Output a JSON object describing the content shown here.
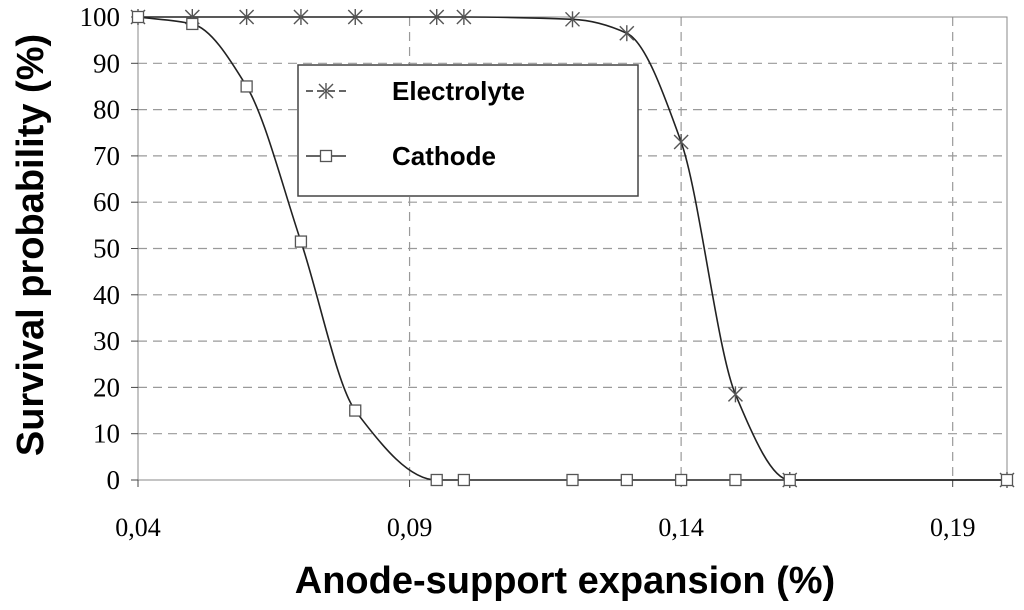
{
  "chart_data": {
    "type": "line",
    "xlabel": "Anode-support expansion (%)",
    "ylabel": "Survival probability (%)",
    "xlim": [
      0.04,
      0.2
    ],
    "ylim": [
      0,
      100
    ],
    "x_ticks": [
      0.04,
      0.09,
      0.14,
      0.19
    ],
    "x_tick_labels": [
      "0,04",
      "0,09",
      "0,14",
      "0,19"
    ],
    "y_ticks": [
      0,
      10,
      20,
      30,
      40,
      50,
      60,
      70,
      80,
      90,
      100
    ],
    "y_tick_labels": [
      "0",
      "10",
      "20",
      "30",
      "40",
      "50",
      "60",
      "70",
      "80",
      "90",
      "100"
    ],
    "grid": true,
    "legend_position": "top-center",
    "series": [
      {
        "name": "Electrolyte",
        "marker": "asterisk",
        "color": "#555555",
        "x": [
          0.04,
          0.05,
          0.06,
          0.07,
          0.08,
          0.095,
          0.1,
          0.12,
          0.13,
          0.14,
          0.15,
          0.16,
          0.2
        ],
        "y": [
          100,
          100,
          100,
          100,
          100,
          100,
          100,
          99.5,
          96.5,
          73,
          18.5,
          0,
          0
        ]
      },
      {
        "name": "Cathode",
        "marker": "square",
        "color": "#555555",
        "x": [
          0.04,
          0.05,
          0.06,
          0.07,
          0.08,
          0.095,
          0.1,
          0.12,
          0.13,
          0.14,
          0.15,
          0.16,
          0.2
        ],
        "y": [
          100,
          98.5,
          85,
          51.5,
          15,
          0,
          0,
          0,
          0,
          0,
          0,
          0,
          0
        ]
      }
    ]
  }
}
